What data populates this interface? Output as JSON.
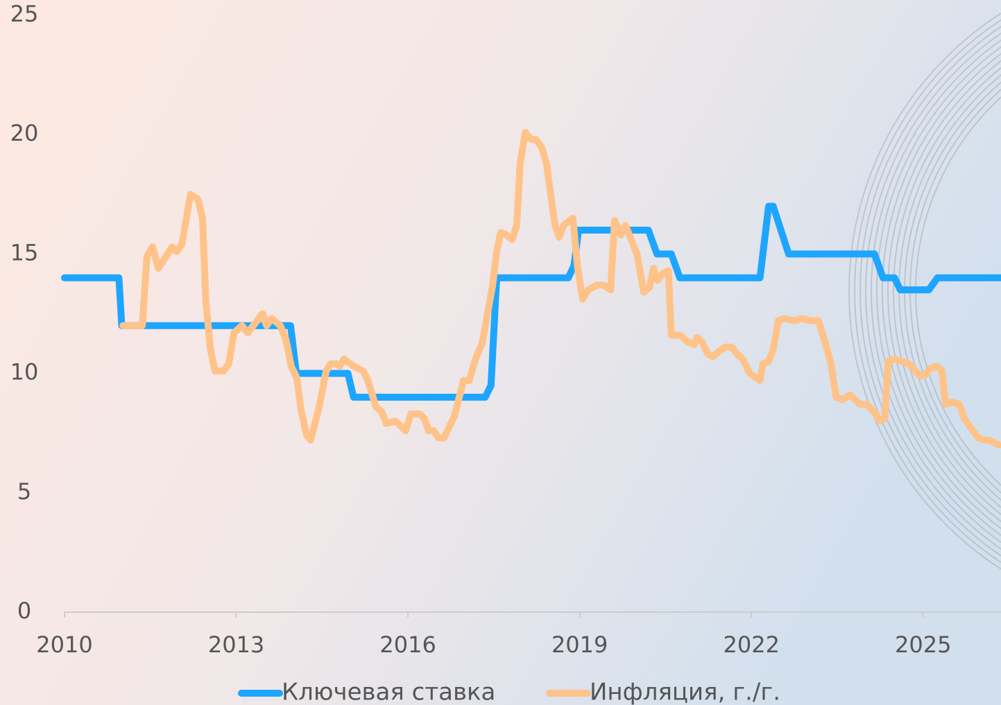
{
  "chart_data": {
    "type": "line",
    "xlim": [
      2010,
      2026.36
    ],
    "xticks": [
      2010,
      2013,
      2016,
      2019,
      2022,
      2025
    ],
    "ylim": [
      0,
      25
    ],
    "yticks": [
      0,
      5,
      10,
      15,
      20,
      25
    ],
    "legend": "bottom",
    "series": [
      {
        "name": "Ключевая ставка",
        "color": "#1ea5ff",
        "x": [
          2010.0,
          2010.95,
          2011.0,
          2013.95,
          2014.05,
          2014.95,
          2015.05,
          2017.35,
          2017.45,
          2017.55,
          2018.8,
          2018.9,
          2018.98,
          2020.2,
          2020.35,
          2020.6,
          2020.75,
          2022.15,
          2022.3,
          2022.38,
          2022.65,
          2024.15,
          2024.3,
          2024.5,
          2024.6,
          2025.1,
          2025.25,
          2026.36
        ],
        "values": [
          14,
          14,
          12,
          12,
          10,
          10,
          9,
          9,
          9.5,
          14,
          14,
          14.5,
          16,
          16,
          15,
          15,
          14,
          14,
          17,
          17,
          15,
          15,
          14,
          14,
          13.5,
          13.5,
          14,
          14
        ]
      },
      {
        "name": "Инфляция, г./г.",
        "color": "#ffc38a",
        "x": [
          2011.02,
          2011.36,
          2011.44,
          2011.54,
          2011.64,
          2011.88,
          2011.96,
          2012.05,
          2012.2,
          2012.33,
          2012.41,
          2012.47,
          2012.55,
          2012.63,
          2012.78,
          2012.87,
          2012.96,
          2013.1,
          2013.2,
          2013.46,
          2013.53,
          2013.62,
          2013.77,
          2013.87,
          2013.96,
          2014.06,
          2014.13,
          2014.23,
          2014.3,
          2014.45,
          2014.57,
          2014.65,
          2014.75,
          2014.81,
          2014.88,
          2015.05,
          2015.22,
          2015.3,
          2015.44,
          2015.54,
          2015.62,
          2015.78,
          2015.96,
          2016.05,
          2016.21,
          2016.29,
          2016.36,
          2016.45,
          2016.53,
          2016.63,
          2016.81,
          2016.97,
          2017.07,
          2017.18,
          2017.3,
          2017.48,
          2017.55,
          2017.62,
          2017.72,
          2017.82,
          2017.9,
          2017.96,
          2018.05,
          2018.15,
          2018.23,
          2018.33,
          2018.42,
          2018.51,
          2018.57,
          2018.64,
          2018.72,
          2018.88,
          2018.96,
          2019.05,
          2019.15,
          2019.3,
          2019.42,
          2019.54,
          2019.61,
          2019.72,
          2019.8,
          2019.9,
          2020.0,
          2020.12,
          2020.22,
          2020.29,
          2020.36,
          2020.46,
          2020.55,
          2020.6,
          2020.75,
          2020.9,
          2021.0,
          2021.05,
          2021.14,
          2021.24,
          2021.33,
          2021.42,
          2021.54,
          2021.66,
          2021.75,
          2021.85,
          2021.97,
          2022.15,
          2022.2,
          2022.3,
          2022.38,
          2022.47,
          2022.57,
          2022.75,
          2022.87,
          2023.05,
          2023.17,
          2023.3,
          2023.39,
          2023.48,
          2023.6,
          2023.72,
          2023.9,
          2024.02,
          2024.17,
          2024.24,
          2024.33,
          2024.39,
          2024.51,
          2024.75,
          2024.94,
          2025.02,
          2025.12,
          2025.24,
          2025.33,
          2025.39,
          2025.51,
          2025.63,
          2025.72,
          2025.84,
          2025.96,
          2026.08,
          2026.15,
          2026.24,
          2026.33
        ],
        "values": [
          12,
          12,
          14.9,
          15.3,
          14.4,
          15.3,
          15.1,
          15.4,
          17.5,
          17.3,
          16.5,
          13,
          11,
          10.1,
          10.1,
          10.4,
          11.7,
          12,
          11.7,
          12.5,
          12,
          12.3,
          12,
          11.4,
          10.3,
          9.8,
          8.5,
          7.4,
          7.2,
          8.6,
          10.1,
          10.4,
          10.4,
          10.3,
          10.6,
          10.3,
          10.1,
          9.7,
          8.6,
          8.4,
          7.9,
          8,
          7.6,
          8.3,
          8.3,
          8.1,
          7.6,
          7.6,
          7.3,
          7.3,
          8.2,
          9.7,
          9.7,
          10.6,
          11.3,
          13.7,
          15.1,
          15.9,
          15.8,
          15.6,
          16.2,
          18.8,
          20.1,
          19.8,
          19.8,
          19.5,
          18.8,
          17.2,
          16.2,
          15.7,
          16.2,
          16.5,
          14.5,
          13.1,
          13.5,
          13.7,
          13.7,
          13.5,
          16.4,
          15.8,
          16.2,
          15.6,
          15,
          13.4,
          13.6,
          14.4,
          13.9,
          14.2,
          14.3,
          11.6,
          11.6,
          11.3,
          11.2,
          11.5,
          11.3,
          10.8,
          10.7,
          10.9,
          11.1,
          11.1,
          10.8,
          10.6,
          10,
          9.7,
          10.4,
          10.5,
          11,
          12.2,
          12.3,
          12.2,
          12.3,
          12.2,
          12.2,
          11.2,
          10.4,
          9,
          8.9,
          9.1,
          8.7,
          8.7,
          8.3,
          8,
          8.1,
          10.5,
          10.6,
          10.4,
          9.9,
          9.9,
          10.2,
          10.3,
          10.1,
          8.7,
          8.8,
          8.7,
          8.1,
          7.7,
          7.3,
          7.2,
          7.2,
          7.1,
          7.0
        ]
      }
    ]
  }
}
